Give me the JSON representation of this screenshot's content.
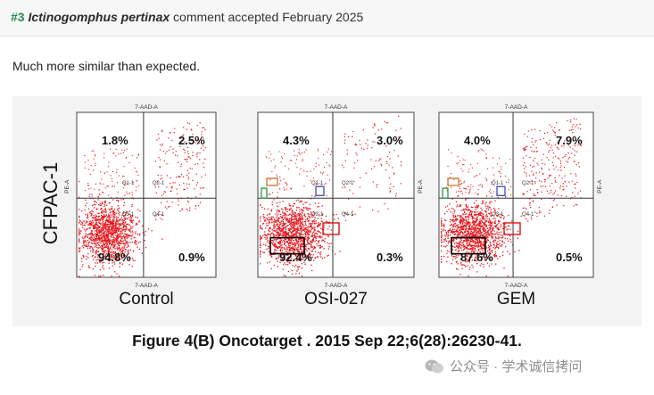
{
  "post": {
    "number": "#3",
    "species": "Ictinogomphus pertinax",
    "status_text": "comment accepted February 2025",
    "comment": "Much more similar than expected."
  },
  "figure": {
    "y_label": "CFPAC-1",
    "caption": "Figure 4(B) Oncotarget . 2015 Sep 22;6(28):26230-41.",
    "watermark": "公众号 · 学术诚信拷问",
    "panels": [
      {
        "name": "Control",
        "q1": "1.8%",
        "q2": "2.5%",
        "q3": "94.8%",
        "q4": "0.9%"
      },
      {
        "name": "OSI-027",
        "q1": "4.3%",
        "q2": "3.0%",
        "q3": "92.4%",
        "q4": "0.3%"
      },
      {
        "name": "GEM",
        "q1": "4.0%",
        "q2": "7.9%",
        "q3": "87.6%",
        "q4": "0.5%"
      }
    ],
    "axis_top_label": "7-AAD-A",
    "axis_bottom_label": "7-AAD-A",
    "axis_side_label": "PE-A",
    "gate_labels": [
      "Q1-1",
      "Q2-1",
      "Q3-1",
      "Q4-1"
    ],
    "colors": {
      "dots": "#e8151b",
      "header_num": "#2e8b57"
    }
  }
}
